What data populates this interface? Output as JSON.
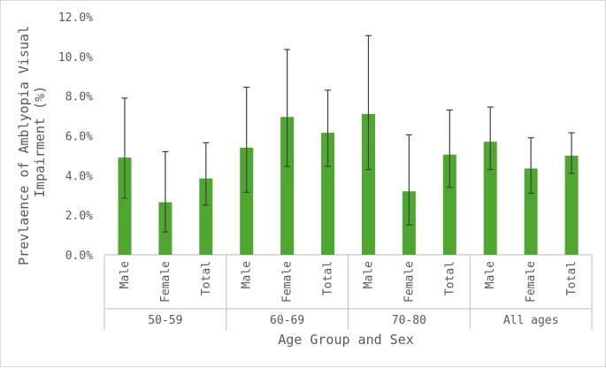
{
  "chart_data": {
    "type": "bar",
    "ylabel_lines": [
      "Prevlaence of Amblyopia Visual",
      "Impairment (%)"
    ],
    "xlabel": "Age Group and Sex",
    "ylim": [
      0,
      12
    ],
    "y_ticks": [
      {
        "value": 0,
        "label": "0.0%"
      },
      {
        "value": 2,
        "label": "2.0%"
      },
      {
        "value": 4,
        "label": "4.0%"
      },
      {
        "value": 6,
        "label": "6.0%"
      },
      {
        "value": 8,
        "label": "8.0%"
      },
      {
        "value": 10,
        "label": "10.0%"
      },
      {
        "value": 12,
        "label": "12.0%"
      }
    ],
    "groups": [
      {
        "name": "50-59",
        "categories": [
          "Male",
          "Female",
          "Total"
        ],
        "values": [
          4.9,
          2.65,
          3.85
        ],
        "err_low": [
          2.85,
          1.15,
          2.5
        ],
        "err_high": [
          7.9,
          5.2,
          5.65
        ]
      },
      {
        "name": "60-69",
        "categories": [
          "Male",
          "Female",
          "Total"
        ],
        "values": [
          5.4,
          6.95,
          6.15
        ],
        "err_low": [
          3.15,
          4.45,
          4.45
        ],
        "err_high": [
          8.45,
          10.35,
          8.3
        ]
      },
      {
        "name": "70-80",
        "categories": [
          "Male",
          "Female",
          "Total"
        ],
        "values": [
          7.1,
          3.2,
          5.05
        ],
        "err_low": [
          4.3,
          1.5,
          3.4
        ],
        "err_high": [
          11.05,
          6.05,
          7.3
        ]
      },
      {
        "name": "All ages",
        "categories": [
          "Male",
          "Female",
          "Total"
        ],
        "values": [
          5.7,
          4.35,
          5.0
        ],
        "err_low": [
          4.3,
          3.1,
          4.1
        ],
        "err_high": [
          7.45,
          5.9,
          6.15
        ]
      }
    ],
    "colors": {
      "bar": "#4ea72e",
      "error_bar": "#404040",
      "axis": "#bfbfbf",
      "text": "#595959"
    },
    "grid": false,
    "legend": "none"
  }
}
